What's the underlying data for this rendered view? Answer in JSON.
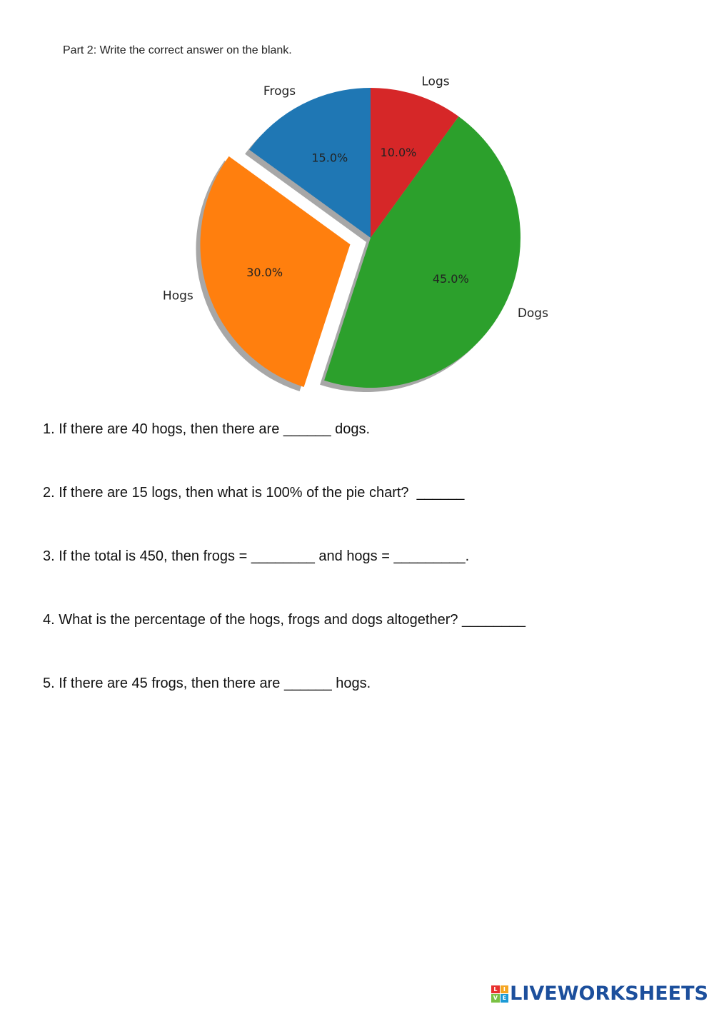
{
  "header": {
    "part_title": "Part 2: Write the correct answer on the blank."
  },
  "chart_data": {
    "type": "pie",
    "slices": [
      {
        "label": "Logs",
        "value": 10.0,
        "pct_label": "10.0%",
        "color": "#d62728",
        "exploded": false
      },
      {
        "label": "Dogs",
        "value": 45.0,
        "pct_label": "45.0%",
        "color": "#2ca02c",
        "exploded": false
      },
      {
        "label": "Hogs",
        "value": 30.0,
        "pct_label": "30.0%",
        "color": "#ff7f0e",
        "exploded": true
      },
      {
        "label": "Frogs",
        "value": 15.0,
        "pct_label": "15.0%",
        "color": "#1f77b4",
        "exploded": false
      }
    ],
    "start_angle": "top, clockwise",
    "shadow": true
  },
  "questions": [
    "1. If there are 40 hogs, then there are ______ dogs.",
    "2. If there are 15 logs, then what is 100% of the pie chart?  ______",
    "3. If the total is 450, then frogs = ________ and hogs = _________.",
    "4. What is the percentage of the hogs, frogs and dogs altogether? ________",
    "5. If there are 45 frogs, then there are ______ hogs."
  ],
  "footer": {
    "brand": "LIVEWORKSHEETS",
    "icon_letters": [
      "L",
      "I",
      "V",
      "E"
    ],
    "icon_colors": [
      "#e8312f",
      "#f5a623",
      "#7ac143",
      "#1c9ad6"
    ]
  }
}
